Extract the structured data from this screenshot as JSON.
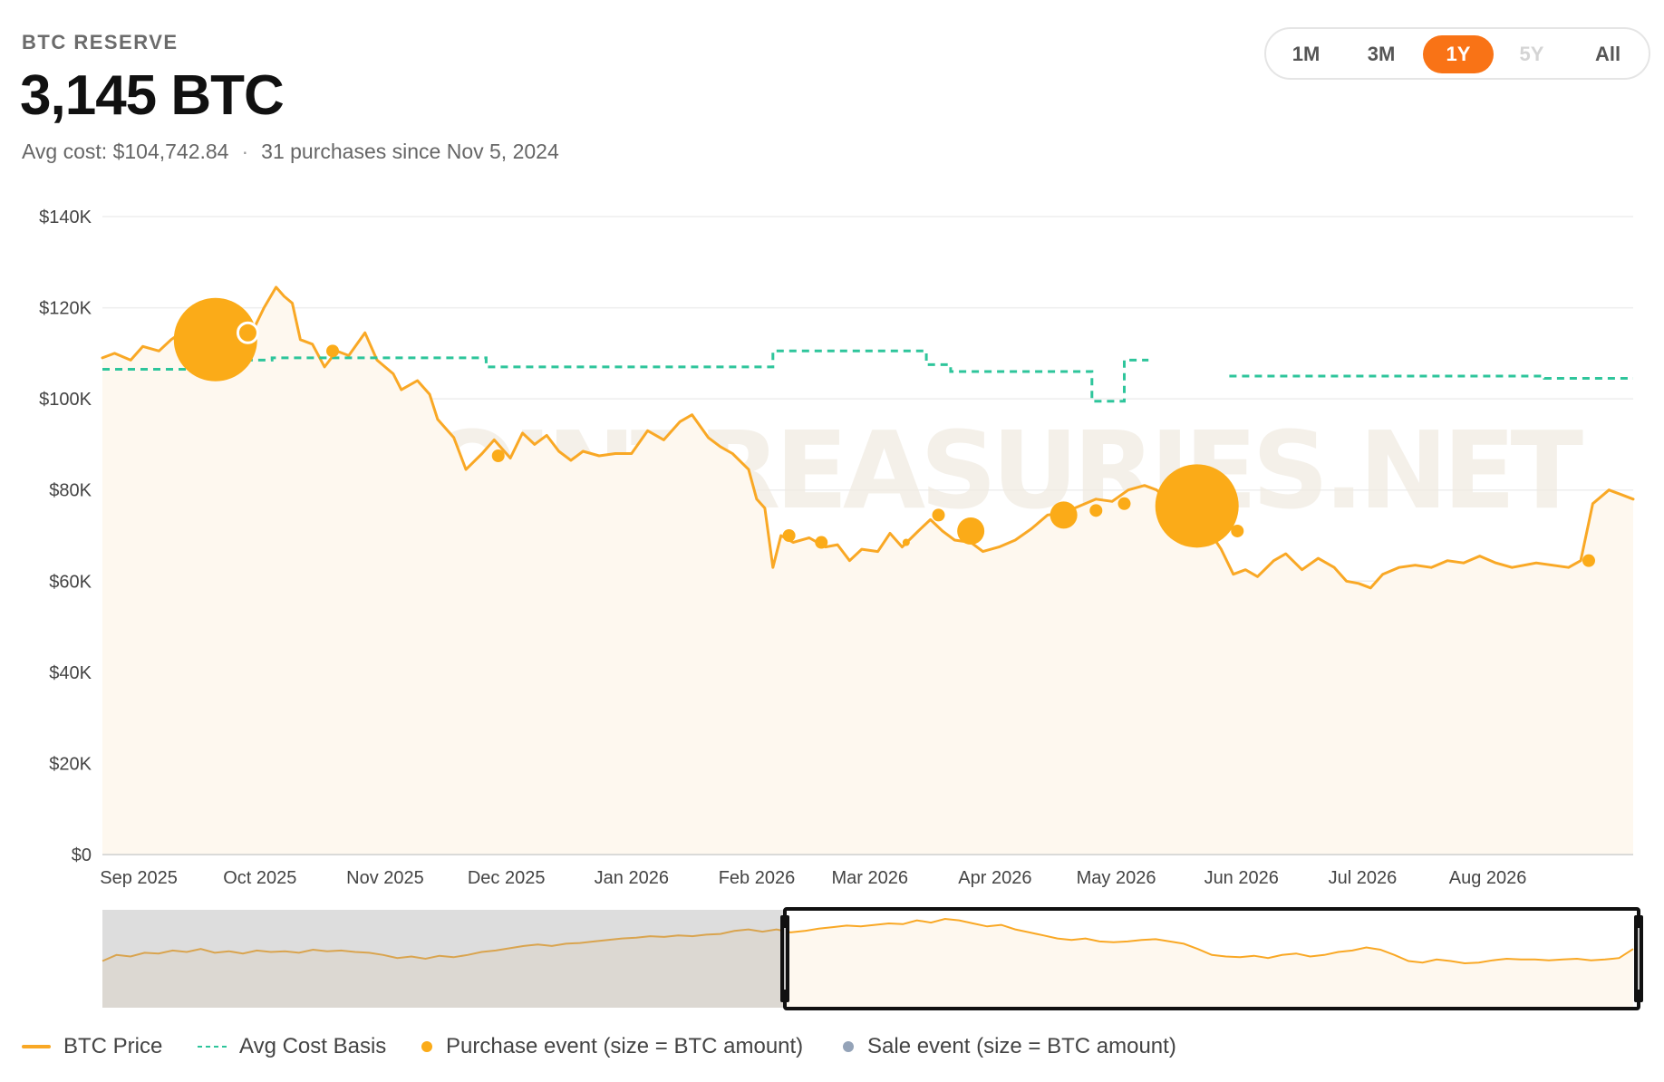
{
  "header": {
    "eyebrow": "BTC RESERVE",
    "value": "3,145 BTC",
    "avg_cost": "Avg cost: $104,742.84",
    "separator": "·",
    "purchases": "31 purchases since Nov 5, 2024"
  },
  "range_toggle": {
    "options": [
      {
        "label": "1M",
        "state": "normal"
      },
      {
        "label": "3M",
        "state": "normal"
      },
      {
        "label": "1Y",
        "state": "active"
      },
      {
        "label": "5Y",
        "state": "disabled"
      },
      {
        "label": "All",
        "state": "normal"
      }
    ]
  },
  "legend": {
    "price": "BTC Price",
    "avg": "Avg Cost Basis",
    "purchase": "Purchase event (size = BTC amount)",
    "sale": "Sale event (size = BTC amount)"
  },
  "watermark": "BITCOINTREASURIES.NET",
  "colors": {
    "price_line": "#f9a825",
    "area_fill": "#fef8ef",
    "avg_line": "#2ec59b",
    "purchase": "#fbab18",
    "sale": "#94a3b8",
    "active_range": "#f97316",
    "grid": "#eeeeee"
  },
  "chart_data": {
    "type": "line",
    "y_ticks": [
      "$0",
      "$20K",
      "$40K",
      "$60K",
      "$80K",
      "$100K",
      "$120K",
      "$140K"
    ],
    "ylim": [
      0,
      140000
    ],
    "x_range": [
      "2025-08-23",
      "2026-09-06"
    ],
    "x_ticks": [
      {
        "date": "2025-09-01",
        "label": "Sep 2025"
      },
      {
        "date": "2025-10-01",
        "label": "Oct 2025"
      },
      {
        "date": "2025-11-01",
        "label": "Nov 2025"
      },
      {
        "date": "2025-12-01",
        "label": "Dec 2025"
      },
      {
        "date": "2026-01-01",
        "label": "Jan 2026"
      },
      {
        "date": "2026-02-01",
        "label": "Feb 2026"
      },
      {
        "date": "2026-03-01",
        "label": "Mar 2026"
      },
      {
        "date": "2026-04-01",
        "label": "Apr 2026"
      },
      {
        "date": "2026-05-01",
        "label": "May 2026"
      },
      {
        "date": "2026-06-01",
        "label": "Jun 2026"
      },
      {
        "date": "2026-07-01",
        "label": "Jul 2026"
      },
      {
        "date": "2026-08-01",
        "label": "Aug 2026"
      }
    ],
    "series": [
      {
        "name": "BTC Price",
        "points": [
          [
            "2025-08-23",
            109000
          ],
          [
            "2025-08-26",
            110000
          ],
          [
            "2025-08-30",
            108500
          ],
          [
            "2025-09-02",
            111500
          ],
          [
            "2025-09-06",
            110500
          ],
          [
            "2025-09-09",
            113000
          ],
          [
            "2025-09-13",
            115500
          ],
          [
            "2025-09-16",
            116000
          ],
          [
            "2025-09-19",
            115000
          ],
          [
            "2025-09-22",
            112500
          ],
          [
            "2025-09-26",
            110000
          ],
          [
            "2025-09-29",
            114500
          ],
          [
            "2025-10-02",
            120000
          ],
          [
            "2025-10-05",
            124500
          ],
          [
            "2025-10-07",
            122500
          ],
          [
            "2025-10-09",
            121000
          ],
          [
            "2025-10-11",
            113000
          ],
          [
            "2025-10-14",
            112000
          ],
          [
            "2025-10-17",
            107000
          ],
          [
            "2025-10-20",
            110500
          ],
          [
            "2025-10-23",
            109500
          ],
          [
            "2025-10-27",
            114500
          ],
          [
            "2025-10-30",
            108500
          ],
          [
            "2025-11-03",
            105500
          ],
          [
            "2025-11-05",
            102000
          ],
          [
            "2025-11-09",
            104000
          ],
          [
            "2025-11-12",
            101000
          ],
          [
            "2025-11-14",
            95500
          ],
          [
            "2025-11-18",
            91500
          ],
          [
            "2025-11-21",
            84500
          ],
          [
            "2025-11-25",
            88000
          ],
          [
            "2025-11-28",
            91000
          ],
          [
            "2025-12-02",
            87000
          ],
          [
            "2025-12-05",
            92500
          ],
          [
            "2025-12-08",
            90000
          ],
          [
            "2025-12-11",
            92000
          ],
          [
            "2025-12-14",
            88500
          ],
          [
            "2025-12-17",
            86500
          ],
          [
            "2025-12-20",
            88500
          ],
          [
            "2025-12-24",
            87500
          ],
          [
            "2025-12-28",
            88000
          ],
          [
            "2026-01-01",
            88000
          ],
          [
            "2026-01-05",
            93000
          ],
          [
            "2026-01-09",
            91000
          ],
          [
            "2026-01-13",
            95000
          ],
          [
            "2026-01-16",
            96500
          ],
          [
            "2026-01-20",
            91500
          ],
          [
            "2026-01-23",
            89500
          ],
          [
            "2026-01-26",
            88000
          ],
          [
            "2026-01-30",
            84500
          ],
          [
            "2026-02-01",
            78000
          ],
          [
            "2026-02-03",
            76000
          ],
          [
            "2026-02-05",
            63000
          ],
          [
            "2026-02-07",
            70000
          ],
          [
            "2026-02-10",
            68500
          ],
          [
            "2026-02-14",
            69500
          ],
          [
            "2026-02-18",
            67500
          ],
          [
            "2026-02-21",
            68000
          ],
          [
            "2026-02-24",
            64500
          ],
          [
            "2026-02-27",
            67000
          ],
          [
            "2026-03-03",
            66500
          ],
          [
            "2026-03-06",
            70500
          ],
          [
            "2026-03-09",
            67500
          ],
          [
            "2026-03-13",
            71000
          ],
          [
            "2026-03-16",
            73500
          ],
          [
            "2026-03-19",
            71000
          ],
          [
            "2026-03-22",
            69000
          ],
          [
            "2026-03-26",
            68500
          ],
          [
            "2026-03-29",
            66500
          ],
          [
            "2026-04-02",
            67500
          ],
          [
            "2026-04-06",
            69000
          ],
          [
            "2026-04-10",
            71500
          ],
          [
            "2026-04-14",
            74500
          ],
          [
            "2026-04-18",
            75000
          ],
          [
            "2026-04-22",
            76500
          ],
          [
            "2026-04-26",
            78000
          ],
          [
            "2026-04-30",
            77500
          ],
          [
            "2026-05-04",
            80000
          ],
          [
            "2026-05-08",
            81000
          ],
          [
            "2026-05-11",
            80000
          ],
          [
            "2026-05-14",
            77500
          ],
          [
            "2026-05-17",
            78500
          ],
          [
            "2026-05-20",
            76500
          ],
          [
            "2026-05-22",
            72500
          ],
          [
            "2026-05-24",
            71000
          ],
          [
            "2026-05-27",
            67000
          ],
          [
            "2026-05-30",
            61500
          ],
          [
            "2026-06-02",
            62500
          ],
          [
            "2026-06-05",
            61000
          ],
          [
            "2026-06-09",
            64500
          ],
          [
            "2026-06-12",
            66000
          ],
          [
            "2026-06-16",
            62500
          ],
          [
            "2026-06-20",
            65000
          ],
          [
            "2026-06-24",
            63000
          ],
          [
            "2026-06-27",
            60000
          ],
          [
            "2026-06-30",
            59500
          ],
          [
            "2026-07-03",
            58500
          ],
          [
            "2026-07-06",
            61500
          ],
          [
            "2026-07-10",
            63000
          ],
          [
            "2026-07-14",
            63500
          ],
          [
            "2026-07-18",
            63000
          ],
          [
            "2026-07-22",
            64500
          ],
          [
            "2026-07-26",
            64000
          ],
          [
            "2026-07-30",
            65500
          ],
          [
            "2026-08-03",
            64000
          ],
          [
            "2026-08-07",
            63000
          ],
          [
            "2026-08-10",
            63500
          ],
          [
            "2026-08-13",
            64000
          ],
          [
            "2026-08-17",
            63500
          ],
          [
            "2026-08-21",
            63000
          ],
          [
            "2026-08-24",
            64500
          ],
          [
            "2026-08-27",
            77000
          ],
          [
            "2026-08-31",
            80000
          ],
          [
            "2026-09-03",
            79000
          ],
          [
            "2026-09-06",
            78000
          ]
        ]
      },
      {
        "name": "Avg Cost Basis",
        "segments": [
          [
            [
              "2025-08-23",
              106500
            ],
            [
              "2025-09-20",
              106500
            ],
            [
              "2025-09-20",
              108500
            ],
            [
              "2025-10-04",
              108500
            ],
            [
              "2025-10-04",
              109000
            ],
            [
              "2025-11-26",
              109000
            ],
            [
              "2025-11-26",
              107000
            ],
            [
              "2026-02-05",
              107000
            ],
            [
              "2026-02-05",
              110500
            ],
            [
              "2026-03-15",
              110500
            ],
            [
              "2026-03-15",
              107500
            ],
            [
              "2026-03-21",
              107500
            ],
            [
              "2026-03-21",
              106000
            ],
            [
              "2026-04-25",
              106000
            ],
            [
              "2026-04-25",
              99500
            ],
            [
              "2026-05-03",
              99500
            ],
            [
              "2026-05-03",
              108500
            ],
            [
              "2026-05-09",
              108500
            ]
          ],
          [
            [
              "2026-05-29",
              105000
            ],
            [
              "2026-08-15",
              105000
            ],
            [
              "2026-08-15",
              104500
            ],
            [
              "2026-09-06",
              104500
            ]
          ]
        ]
      }
    ],
    "purchases": [
      {
        "date": "2025-09-20",
        "price": 113000,
        "size": "large"
      },
      {
        "date": "2025-09-28",
        "price": 114500,
        "size": "hollow"
      },
      {
        "date": "2025-10-19",
        "price": 110500,
        "size": "small"
      },
      {
        "date": "2025-11-29",
        "price": 87500,
        "size": "small"
      },
      {
        "date": "2026-02-09",
        "price": 70000,
        "size": "small"
      },
      {
        "date": "2026-02-17",
        "price": 68500,
        "size": "small"
      },
      {
        "date": "2026-03-10",
        "price": 68500,
        "size": "tiny"
      },
      {
        "date": "2026-03-18",
        "price": 74500,
        "size": "small"
      },
      {
        "date": "2026-03-26",
        "price": 71000,
        "size": "medium"
      },
      {
        "date": "2026-04-18",
        "price": 74500,
        "size": "medium"
      },
      {
        "date": "2026-04-26",
        "price": 75500,
        "size": "small"
      },
      {
        "date": "2026-05-03",
        "price": 77000,
        "size": "small"
      },
      {
        "date": "2026-05-21",
        "price": 76500,
        "size": "large"
      },
      {
        "date": "2026-05-31",
        "price": 71000,
        "size": "small"
      },
      {
        "date": "2026-08-26",
        "price": 64500,
        "size": "small"
      }
    ],
    "navigator": {
      "selected_from": "2025-08-23",
      "selected_to": "2026-09-06",
      "overview_prices": [
        62000,
        70000,
        68000,
        73000,
        72000,
        76000,
        74000,
        78000,
        73000,
        75000,
        72000,
        76000,
        74000,
        75000,
        73000,
        77000,
        75000,
        76000,
        74000,
        73000,
        70000,
        66000,
        68000,
        65000,
        69000,
        67000,
        70000,
        74000,
        76000,
        79000,
        82000,
        84000,
        82000,
        85000,
        86000,
        88000,
        90000,
        92000,
        93000,
        95000,
        94000,
        96000,
        95000,
        97000,
        98000,
        102000,
        104000,
        101000,
        104000,
        100000,
        102000,
        105000,
        107000,
        109000,
        108000,
        110000,
        112000,
        111000,
        116000,
        113000,
        118000,
        116000,
        112000,
        108000,
        110000,
        104000,
        100000,
        96000,
        92000,
        90000,
        92000,
        88000,
        87000,
        88000,
        90000,
        91000,
        88000,
        85000,
        78000,
        70000,
        68000,
        67000,
        69000,
        66000,
        70000,
        72000,
        68000,
        70000,
        74000,
        76000,
        80000,
        77000,
        70000,
        62000,
        60000,
        64000,
        62000,
        59000,
        60000,
        63000,
        65000,
        64000,
        64000,
        63000,
        64000,
        65000,
        63000,
        64000,
        66000,
        78000
      ]
    }
  }
}
